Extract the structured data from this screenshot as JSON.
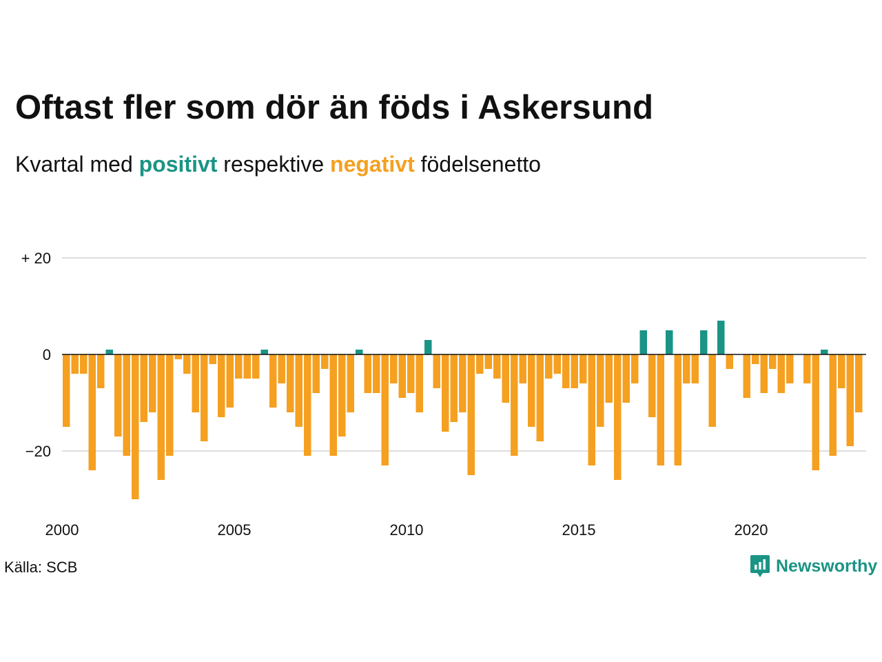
{
  "title": "Oftast fler som dör än föds i Askersund",
  "subtitle": {
    "prefix": "Kvartal med ",
    "positive": "positivt",
    "middle": " respektive ",
    "negative": "negativt",
    "suffix": " födelsenetto"
  },
  "source": "Källa: SCB",
  "brand": {
    "name": "Newsworthy",
    "icon": "newsworthy-logo-icon"
  },
  "colors": {
    "positive": "#1a9485",
    "negative": "#f5a020",
    "grid": "#dddddd"
  },
  "chart_data": {
    "type": "bar",
    "x_start": 2000,
    "x_end": 2023.5,
    "period": "quarter",
    "ylim": [
      -30,
      20
    ],
    "grid": true,
    "y_ticks": [
      {
        "value": 20,
        "label": "+ 20"
      },
      {
        "value": 0,
        "label": "0"
      },
      {
        "value": -20,
        "label": "−20"
      }
    ],
    "x_ticks": [
      {
        "value": 2000,
        "label": "2000"
      },
      {
        "value": 2005,
        "label": "2005"
      },
      {
        "value": 2010,
        "label": "2010"
      },
      {
        "value": 2015,
        "label": "2015"
      },
      {
        "value": 2020,
        "label": "2020"
      }
    ],
    "values": [
      -15,
      -4,
      -4,
      -24,
      -7,
      1,
      -17,
      -21,
      -30,
      -14,
      -12,
      -26,
      -21,
      -1,
      -4,
      -12,
      -18,
      -2,
      -13,
      -11,
      -5,
      -5,
      -5,
      1,
      -11,
      -6,
      -12,
      -15,
      -21,
      -8,
      -3,
      -21,
      -17,
      -12,
      1,
      -8,
      -8,
      -23,
      -6,
      -9,
      -8,
      -12,
      3,
      -7,
      -16,
      -14,
      -12,
      -25,
      -4,
      -3,
      -5,
      -10,
      -21,
      -6,
      -15,
      -18,
      -5,
      -4,
      -7,
      -7,
      -6,
      -23,
      -15,
      -10,
      -26,
      -10,
      -6,
      5,
      -13,
      -23,
      5,
      -23,
      -6,
      -6,
      5,
      -15,
      7,
      -3,
      0,
      -9,
      -2,
      -8,
      -3,
      -8,
      -6,
      0,
      -6,
      -24,
      1,
      -21,
      -7,
      -19,
      -12
    ]
  }
}
